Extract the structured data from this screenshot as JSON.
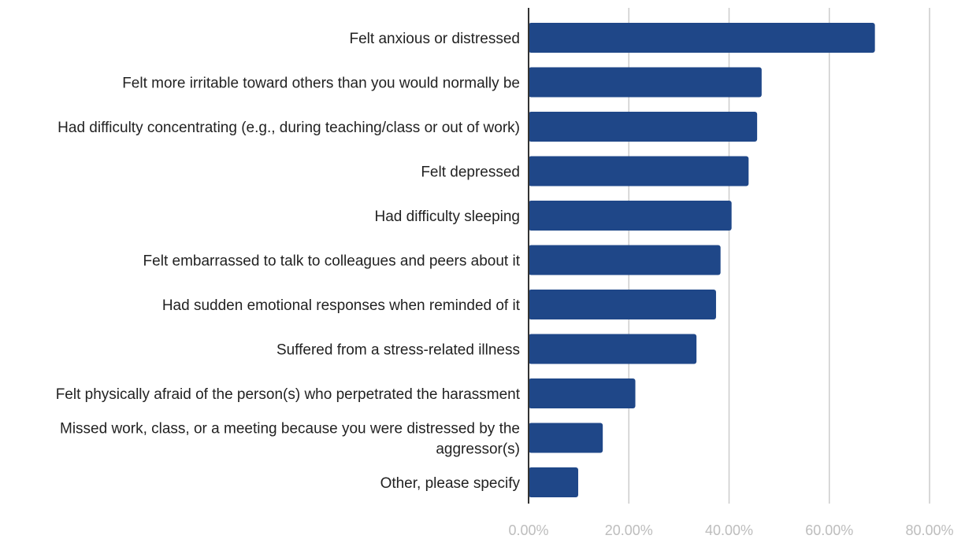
{
  "chart_data": {
    "type": "bar",
    "orientation": "horizontal",
    "categories": [
      "Felt anxious or distressed",
      "Felt more irritable toward others than you would normally be",
      "Had difficulty concentrating (e.g., during teaching/class or out of work)",
      "Felt depressed",
      "Had difficulty sleeping",
      "Felt embarrassed to talk to colleagues and peers about it",
      "Had sudden emotional responses when reminded of it",
      "Suffered from a stress-related illness",
      "Felt physically afraid of the person(s) who perpetrated the harassment",
      "Missed work, class, or a meeting because you were distressed by the aggressor(s)",
      "Other, please specify"
    ],
    "category_lines": [
      [
        "Felt anxious or distressed"
      ],
      [
        "Felt more irritable toward others than you would normally be"
      ],
      [
        "Had difficulty concentrating (e.g., during teaching/class or out of work)"
      ],
      [
        "Felt depressed"
      ],
      [
        "Had difficulty sleeping"
      ],
      [
        "Felt embarrassed to talk to colleagues and peers about it"
      ],
      [
        "Had sudden emotional responses when reminded of it"
      ],
      [
        "Suffered from a stress-related illness"
      ],
      [
        "Felt physically afraid of the person(s) who perpetrated the harassment"
      ],
      [
        "Missed work, class, or a meeting because you were distressed by the",
        "aggressor(s)"
      ],
      [
        "Other, please specify"
      ]
    ],
    "values": [
      69.1,
      46.5,
      45.6,
      43.9,
      40.5,
      38.3,
      37.4,
      33.5,
      21.3,
      14.8,
      9.9
    ],
    "xlim": [
      0,
      80
    ],
    "xticks": [
      "0.00%",
      "20.00%",
      "40.00%",
      "60.00%",
      "80.00%"
    ],
    "grid": true,
    "title": "",
    "xlabel": "",
    "ylabel": "",
    "colors": {
      "bar": "#1f4788",
      "grid": "#cccccc",
      "axis": "#333333"
    }
  }
}
